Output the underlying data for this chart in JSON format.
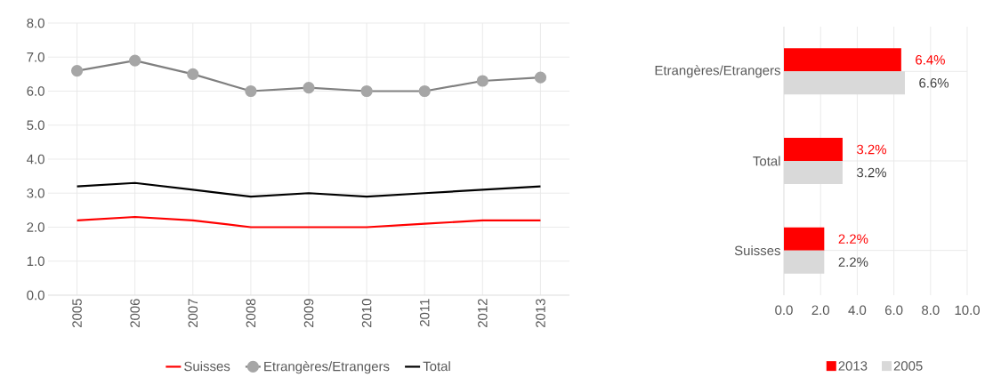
{
  "chart_data": [
    {
      "type": "line",
      "categories": [
        "2005",
        "2006",
        "2007",
        "2008",
        "2009",
        "2010",
        "2011",
        "2012",
        "2013"
      ],
      "series": [
        {
          "name": "Suisses",
          "color": "#ff0000",
          "values": [
            2.2,
            2.3,
            2.2,
            2.0,
            2.0,
            2.0,
            2.1,
            2.2,
            2.2
          ]
        },
        {
          "name": "Etrangères/Etrangers",
          "color": "#808080",
          "marker": "circle",
          "values": [
            6.6,
            6.9,
            6.5,
            6.0,
            6.1,
            6.0,
            6.0,
            6.3,
            6.4
          ]
        },
        {
          "name": "Total",
          "color": "#000000",
          "values": [
            3.2,
            3.3,
            3.1,
            2.9,
            3.0,
            2.9,
            3.0,
            3.1,
            3.2
          ]
        }
      ],
      "ylim": [
        0,
        8
      ],
      "yticks": [
        {
          "value": 0,
          "label": "0.0"
        },
        {
          "value": 1,
          "label": "1.0"
        },
        {
          "value": 2,
          "label": "2.0"
        },
        {
          "value": 3,
          "label": "3.0"
        },
        {
          "value": 4,
          "label": "4.0"
        },
        {
          "value": 5,
          "label": "5.0"
        },
        {
          "value": 6,
          "label": "6.0"
        },
        {
          "value": 7,
          "label": "7.0"
        },
        {
          "value": 8,
          "label": "8.0"
        }
      ],
      "grid": true,
      "legend": "bottom"
    },
    {
      "type": "bar",
      "orientation": "horizontal",
      "categories": [
        "Etrangères/Etrangers",
        "Total",
        "Suisses"
      ],
      "series": [
        {
          "name": "2013",
          "color": "#ff0000",
          "values": [
            6.4,
            3.2,
            2.2
          ],
          "value_labels": [
            "6.4%",
            "3.2%",
            "2.2%"
          ]
        },
        {
          "name": "2005",
          "color": "#d9d9d9",
          "values": [
            6.6,
            3.2,
            2.2
          ],
          "value_labels": [
            "6.6%",
            "3.2%",
            "2.2%"
          ]
        }
      ],
      "xlim": [
        0,
        10
      ],
      "xticks": [
        {
          "value": 0,
          "label": "0.0"
        },
        {
          "value": 2,
          "label": "2.0"
        },
        {
          "value": 4,
          "label": "4.0"
        },
        {
          "value": 6,
          "label": "6.0"
        },
        {
          "value": 8,
          "label": "8.0"
        },
        {
          "value": 10,
          "label": "10.0"
        }
      ],
      "grid": true,
      "legend": "bottom"
    }
  ]
}
